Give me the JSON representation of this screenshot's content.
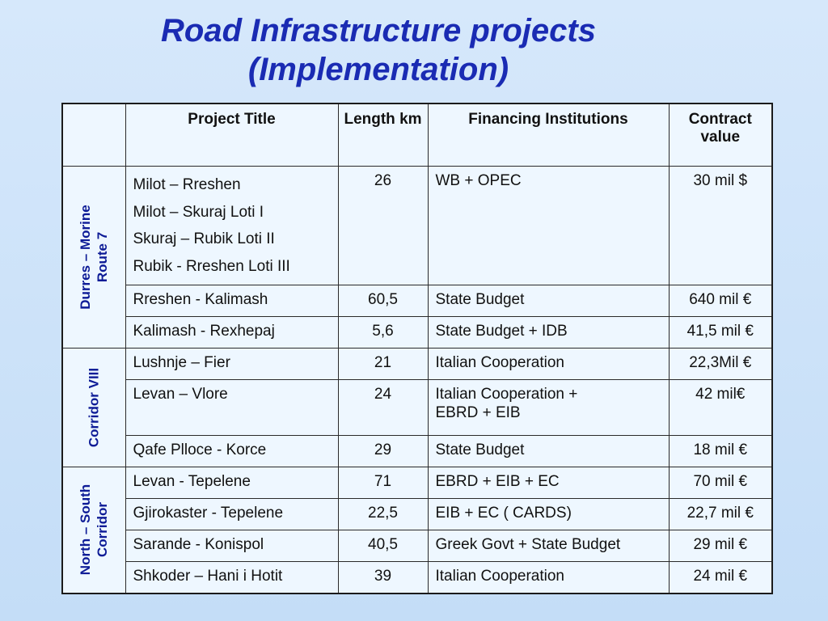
{
  "title": {
    "line1": "Road Infrastructure projects",
    "line2": "(Implementation)"
  },
  "table": {
    "headers": [
      "",
      "Project Title",
      "Length km",
      "Financing  Institutions",
      "Contract value"
    ],
    "groups": [
      {
        "label": [
          "Durres – Morine",
          "Route 7"
        ],
        "rows": [
          {
            "titles": [
              "Milot – Rreshen",
              "Milot – Skuraj Loti I",
              "Skuraj – Rubik Loti II",
              "Rubik - Rreshen Loti III"
            ],
            "length": "26",
            "financing": "WB + OPEC",
            "value": "30 mil $"
          },
          {
            "title": "Rreshen - Kalimash",
            "length": "60,5",
            "financing": "State Budget",
            "value": "640 mil €"
          },
          {
            "title": "Kalimash - Rexhepaj",
            "length": "5,6",
            "financing": "State Budget + IDB",
            "value": "41,5 mil €"
          }
        ]
      },
      {
        "label": [
          "Corridor VIII"
        ],
        "rows": [
          {
            "title": "Lushnje – Fier",
            "length": "21",
            "financing": "Italian Cooperation",
            "value": "22,3Mil €"
          },
          {
            "title": "Levan – Vlore",
            "length": "24",
            "financing": [
              "Italian Cooperation +",
              "EBRD + EIB"
            ],
            "value": "42 mil€"
          },
          {
            "title": "Qafe Plloce - Korce",
            "length": "29",
            "financing": "State Budget",
            "value": "18 mil €"
          }
        ]
      },
      {
        "label": [
          "North – South",
          "Corridor"
        ],
        "rows": [
          {
            "title": "Levan - Tepelene",
            "length": "71",
            "financing": "EBRD + EIB + EC",
            "value": "70 mil €"
          },
          {
            "title": "Gjirokaster - Tepelene",
            "length": "22,5",
            "financing": "EIB + EC ( CARDS)",
            "value": "22,7 mil €"
          },
          {
            "title": "Sarande - Konispol",
            "length": "40,5",
            "financing": "Greek Govt + State Budget",
            "value": "29 mil €"
          },
          {
            "title": "Shkoder – Hani i Hotit",
            "length": "39",
            "financing": "Italian Cooperation",
            "value": "24 mil €"
          }
        ]
      }
    ]
  }
}
